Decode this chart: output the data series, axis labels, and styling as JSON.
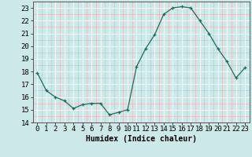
{
  "x": [
    0,
    1,
    2,
    3,
    4,
    5,
    6,
    7,
    8,
    9,
    10,
    11,
    12,
    13,
    14,
    15,
    16,
    17,
    18,
    19,
    20,
    21,
    22,
    23
  ],
  "y": [
    17.9,
    16.5,
    16.0,
    15.7,
    15.1,
    15.4,
    15.5,
    15.5,
    14.6,
    14.8,
    15.0,
    18.4,
    19.8,
    20.9,
    22.5,
    23.0,
    23.1,
    23.0,
    22.0,
    21.0,
    19.8,
    18.8,
    17.5,
    18.3
  ],
  "xlabel": "Humidex (Indice chaleur)",
  "xlim": [
    -0.5,
    23.5
  ],
  "ylim": [
    14,
    23.5
  ],
  "yticks": [
    14,
    15,
    16,
    17,
    18,
    19,
    20,
    21,
    22,
    23
  ],
  "xticks": [
    0,
    1,
    2,
    3,
    4,
    5,
    6,
    7,
    8,
    9,
    10,
    11,
    12,
    13,
    14,
    15,
    16,
    17,
    18,
    19,
    20,
    21,
    22,
    23
  ],
  "line_color": "#1f6b5e",
  "marker_color": "#1f6b5e",
  "bg_color": "#cce8e8",
  "grid_white_color": "#ffffff",
  "grid_pink_color": "#e8b8b8",
  "xlabel_fontsize": 7,
  "tick_fontsize": 6.5
}
